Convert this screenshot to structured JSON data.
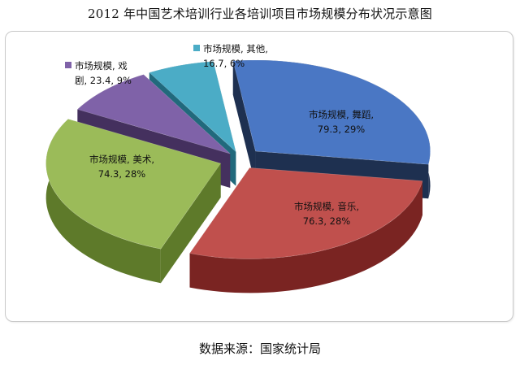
{
  "chart_data": {
    "type": "pie",
    "title": "2012 年中国艺术培训行业各培训项目市场规模分布状况示意图",
    "series_name": "市场规模",
    "slices": [
      {
        "label": "舞蹈",
        "value": 79.3,
        "percent": "29%",
        "color": "#4a77c4",
        "side_color": "#1e3050"
      },
      {
        "label": "音乐",
        "value": 76.3,
        "percent": "28%",
        "color": "#c0504d",
        "side_color": "#7a2422"
      },
      {
        "label": "美术",
        "value": 74.3,
        "percent": "28%",
        "color": "#9bbb59",
        "side_color": "#5e7a2a"
      },
      {
        "label": "戏剧",
        "value": 23.4,
        "percent": "9%",
        "color": "#7f62a8",
        "side_color": "#44305e"
      },
      {
        "label": "其他",
        "value": 16.7,
        "percent": "6%",
        "color": "#4bacc6",
        "side_color": "#21697c"
      }
    ],
    "data_labels": [
      {
        "line1": "市场规模, 舞蹈,",
        "line2": "79.3, 29%"
      },
      {
        "line1": "市场规模, 音乐,",
        "line2": "76.3, 28%"
      },
      {
        "line1": "市场规模, 美术,",
        "line2": "74.3, 28%"
      },
      {
        "line1": "市场规模, 戏",
        "line2": "剧, 23.4, 9%"
      },
      {
        "line1": "市场规模, 其他,",
        "line2": "16.7, 6%"
      }
    ],
    "legend": "none",
    "exploded": true,
    "three_d": true
  },
  "footer": {
    "source": "数据来源：国家统计局"
  }
}
